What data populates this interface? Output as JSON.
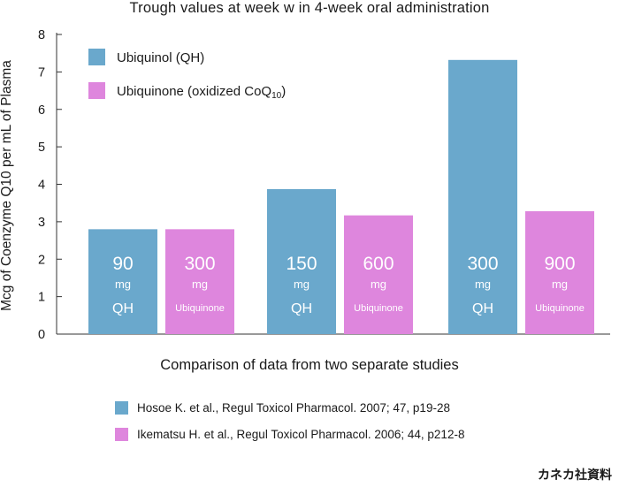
{
  "colors": {
    "qh": "#6aa8cc",
    "ubiquinone": "#de86dd",
    "axis": "#333333"
  },
  "chart_data": {
    "type": "bar",
    "title": "Trough values at week w in 4-week oral administration",
    "xlabel": "Comparison of data from two separate studies",
    "ylabel": "Mcg of Coenzyme Q10 per mL of Plasma",
    "ylim": [
      0,
      8
    ],
    "yticks": [
      "0",
      "1",
      "2",
      "3",
      "4",
      "5",
      "6",
      "7",
      "8"
    ],
    "legend": [
      {
        "name": "Ubiquinol (QH)",
        "series": "qh"
      },
      {
        "name": "Ubiquinone (oxidized CoQ",
        "sub": "10",
        "suffix": ")",
        "series": "ubiquinone"
      }
    ],
    "legend_position": "top-left",
    "bars": [
      {
        "series": "qh",
        "value": 2.8,
        "dose": "90",
        "unit": "mg",
        "label": "QH"
      },
      {
        "series": "ubiquinone",
        "value": 2.8,
        "dose": "300",
        "unit": "mg",
        "label": "Ubiquinone"
      },
      {
        "series": "qh",
        "value": 3.87,
        "dose": "150",
        "unit": "mg",
        "label": "QH"
      },
      {
        "series": "ubiquinone",
        "value": 3.17,
        "dose": "600",
        "unit": "mg",
        "label": "Ubiquinone"
      },
      {
        "series": "qh",
        "value": 7.32,
        "dose": "300",
        "unit": "mg",
        "label": "QH"
      },
      {
        "series": "ubiquinone",
        "value": 3.28,
        "dose": "900",
        "unit": "mg",
        "label": "Ubiquinone"
      }
    ]
  },
  "sources": [
    {
      "series": "qh",
      "text": "Hosoe K. et al., Regul Toxicol Pharmacol. 2007; 47, p19-28"
    },
    {
      "series": "ubiquinone",
      "text": "Ikematsu H. et al., Regul Toxicol Pharmacol. 2006; 44, p212-8"
    }
  ],
  "credit": "カネカ社資料"
}
